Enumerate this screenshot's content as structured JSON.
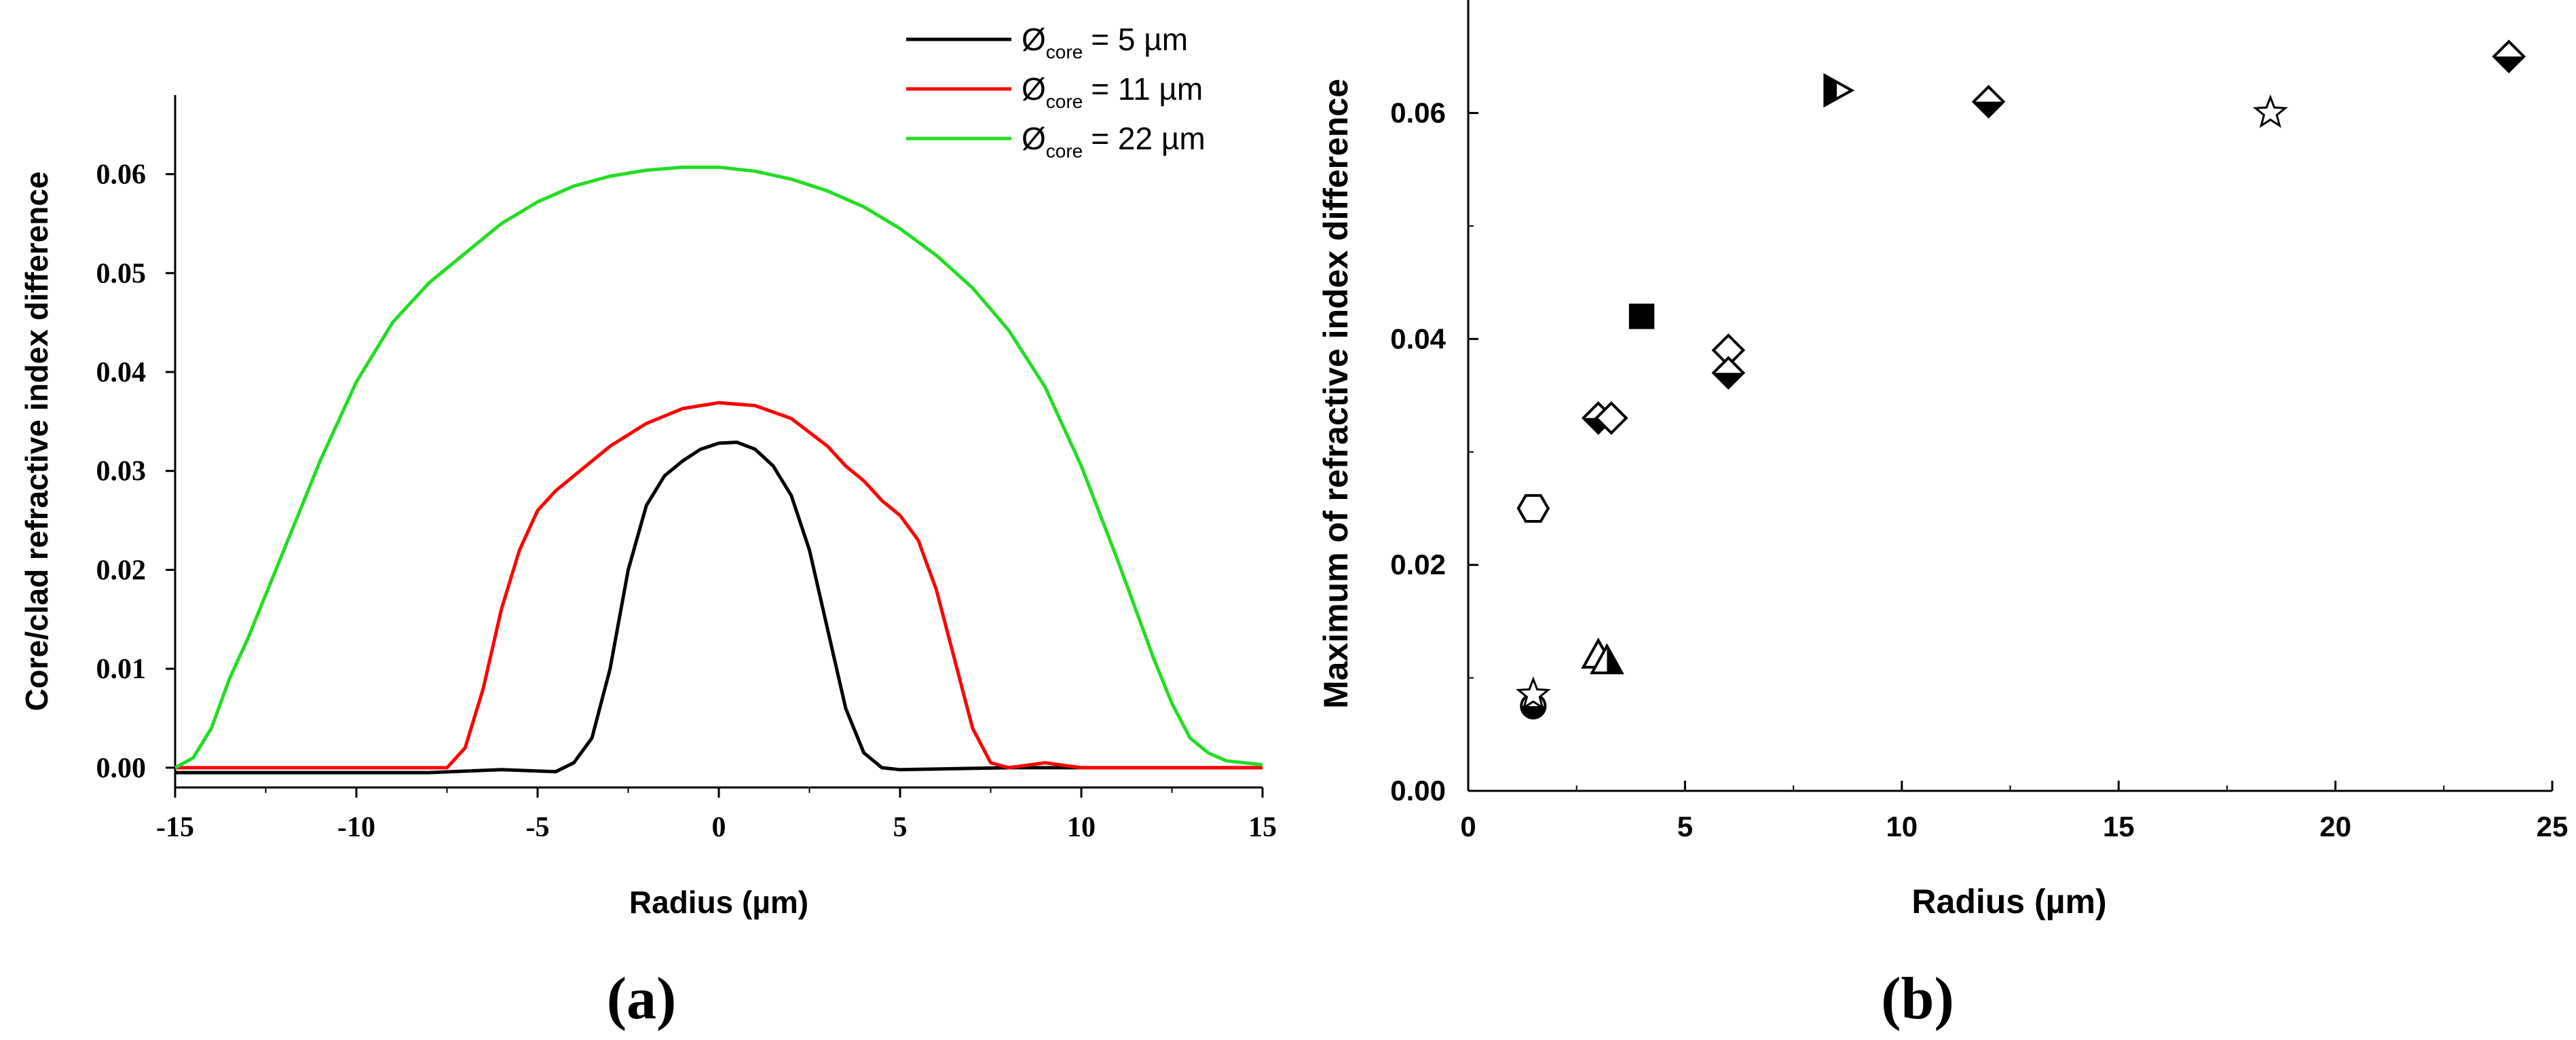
{
  "colors": {
    "black": "#000000",
    "red": "#ff0000",
    "green": "#22dd22",
    "background": "#ffffff"
  },
  "panel_labels": {
    "a": "(a)",
    "b": "(b)"
  },
  "chart_data": [
    {
      "id": "a",
      "type": "line",
      "title": "",
      "xlabel": "Radius (µm)",
      "ylabel": "Core/clad refractive index difference",
      "xlim": [
        -15,
        15
      ],
      "ylim": [
        -0.002,
        0.068
      ],
      "xticks": [
        -15,
        -10,
        -5,
        0,
        5,
        10,
        15
      ],
      "xtick_labels": [
        "-15",
        "-10",
        "-5",
        "0",
        "5",
        "10",
        "15"
      ],
      "yticks": [
        0,
        0.01,
        0.02,
        0.03,
        0.04,
        0.05,
        0.06
      ],
      "ytick_labels": [
        "0.00",
        "0.01",
        "0.02",
        "0.03",
        "0.04",
        "0.05",
        "0.06"
      ],
      "legend_position": "top-right",
      "series": [
        {
          "legend_symbol": "Ø",
          "legend_sub": "core",
          "legend_value": "= 5 µm",
          "color": "#000000",
          "x": [
            -15,
            -8,
            -6,
            -4.5,
            -4,
            -3.5,
            -3,
            -2.5,
            -2,
            -1.5,
            -1,
            -0.5,
            0,
            0.5,
            1,
            1.5,
            2,
            2.5,
            3,
            3.5,
            4,
            4.5,
            5,
            8,
            15
          ],
          "y": [
            -0.0005,
            -0.0005,
            -0.0002,
            -0.0004,
            0.0005,
            0.003,
            0.01,
            0.02,
            0.0265,
            0.0295,
            0.031,
            0.0322,
            0.0328,
            0.0329,
            0.0322,
            0.0305,
            0.0275,
            0.022,
            0.014,
            0.006,
            0.0015,
            0.0,
            -0.0002,
            0.0,
            0.0
          ]
        },
        {
          "legend_symbol": "Ø",
          "legend_sub": "core",
          "legend_value": "= 11 µm",
          "color": "#ff0000",
          "x": [
            -15,
            -10,
            -8,
            -7.5,
            -7,
            -6.5,
            -6,
            -5.5,
            -5,
            -4.5,
            -4,
            -3,
            -2,
            -1,
            0,
            1,
            2,
            3,
            3.5,
            4,
            4.5,
            5,
            5.5,
            6,
            6.5,
            7,
            7.5,
            8,
            9,
            10,
            15
          ],
          "y": [
            0.0,
            0.0,
            0.0,
            0.0,
            0.002,
            0.008,
            0.016,
            0.022,
            0.026,
            0.028,
            0.0295,
            0.0325,
            0.0348,
            0.0363,
            0.0369,
            0.0366,
            0.0353,
            0.0325,
            0.0305,
            0.029,
            0.027,
            0.0255,
            0.023,
            0.018,
            0.011,
            0.004,
            0.0005,
            0.0,
            0.0005,
            0.0,
            0.0
          ]
        },
        {
          "legend_symbol": "Ø",
          "legend_sub": "core",
          "legend_value": "= 22 µm",
          "color": "#22dd22",
          "x": [
            -15,
            -14.5,
            -14,
            -13.5,
            -13,
            -12,
            -11,
            -10,
            -9,
            -8,
            -7,
            -6,
            -5,
            -4,
            -3,
            -2,
            -1,
            0,
            1,
            2,
            3,
            4,
            5,
            6,
            7,
            8,
            9,
            10,
            11,
            11.5,
            12,
            12.5,
            13,
            13.5,
            14,
            15
          ],
          "y": [
            0.0,
            0.001,
            0.004,
            0.009,
            0.013,
            0.022,
            0.031,
            0.039,
            0.045,
            0.049,
            0.052,
            0.055,
            0.0572,
            0.0588,
            0.0598,
            0.0604,
            0.0607,
            0.0607,
            0.0603,
            0.0595,
            0.0583,
            0.0567,
            0.0545,
            0.0518,
            0.0485,
            0.0442,
            0.0385,
            0.0305,
            0.021,
            0.016,
            0.011,
            0.0065,
            0.003,
            0.0015,
            0.0007,
            0.0003
          ]
        }
      ]
    },
    {
      "id": "b",
      "type": "scatter",
      "title": "",
      "xlabel": "Radius (µm)",
      "ylabel": "Maximum of refractive index difference",
      "xlim": [
        0,
        25
      ],
      "ylim": [
        0,
        0.07
      ],
      "xticks": [
        0,
        5,
        10,
        15,
        20,
        25
      ],
      "xtick_labels": [
        "0",
        "5",
        "10",
        "15",
        "20",
        "25"
      ],
      "yticks": [
        0,
        0.02,
        0.04,
        0.06
      ],
      "ytick_labels": [
        "0.00",
        "0.02",
        "0.04",
        "0.06"
      ],
      "points": [
        {
          "x": 1.5,
          "y": 0.025,
          "marker": "hexagon-open"
        },
        {
          "x": 1.5,
          "y": 0.0075,
          "marker": "circle-half"
        },
        {
          "x": 1.5,
          "y": 0.0085,
          "marker": "star-open"
        },
        {
          "x": 3.0,
          "y": 0.012,
          "marker": "triangle-open"
        },
        {
          "x": 3.2,
          "y": 0.0115,
          "marker": "triangle-half"
        },
        {
          "x": 3.0,
          "y": 0.033,
          "marker": "diamond-half-bottom"
        },
        {
          "x": 3.3,
          "y": 0.033,
          "marker": "diamond-open"
        },
        {
          "x": 4.0,
          "y": 0.042,
          "marker": "square-filled"
        },
        {
          "x": 6.0,
          "y": 0.039,
          "marker": "diamond-open"
        },
        {
          "x": 6.0,
          "y": 0.037,
          "marker": "diamond-half-bottom"
        },
        {
          "x": 8.5,
          "y": 0.062,
          "marker": "triangle-right-half"
        },
        {
          "x": 12.0,
          "y": 0.061,
          "marker": "diamond-half-bottom"
        },
        {
          "x": 18.5,
          "y": 0.06,
          "marker": "star-open"
        },
        {
          "x": 24.0,
          "y": 0.065,
          "marker": "diamond-half-bottom"
        }
      ]
    }
  ]
}
